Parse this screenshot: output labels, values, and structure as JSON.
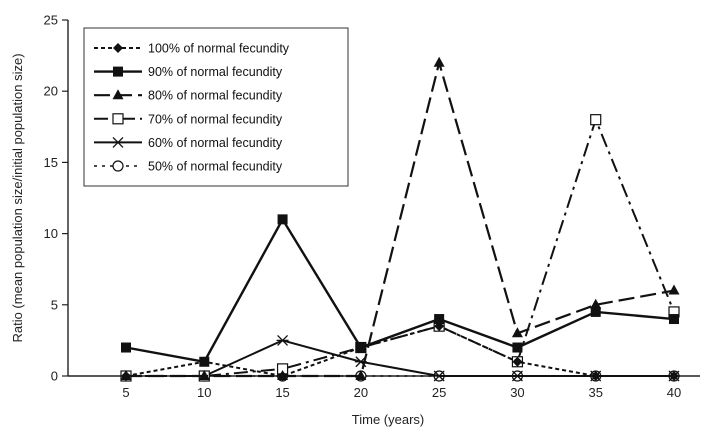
{
  "chart_data": {
    "type": "line",
    "title": "",
    "xlabel": "Time (years)",
    "ylabel": "Ratio (mean population size/initial population size)",
    "x": [
      5,
      10,
      15,
      20,
      25,
      30,
      35,
      40
    ],
    "xlim": [
      5,
      40
    ],
    "ylim": [
      0,
      25
    ],
    "yticks": [
      0,
      5,
      10,
      15,
      20,
      25
    ],
    "xticks": [
      5,
      10,
      15,
      20,
      25,
      30,
      35,
      40
    ],
    "grid": false,
    "legend_position": "top-left",
    "series": [
      {
        "name": "100% of normal fecundity",
        "x": [
          5,
          10,
          15,
          20,
          25,
          30,
          35,
          40
        ],
        "values": [
          0,
          1,
          0,
          2,
          3.5,
          1,
          0,
          0
        ],
        "dash": "4,3",
        "marker": "diamond",
        "width": 2
      },
      {
        "name": "90% of normal fecundity",
        "x": [
          5,
          10,
          15,
          20,
          25,
          30,
          35,
          40
        ],
        "values": [
          2,
          1,
          11,
          2,
          4,
          2,
          4.5,
          4
        ],
        "dash": "",
        "marker": "square",
        "width": 2.4
      },
      {
        "name": "80% of normal fecundity",
        "x": [
          5,
          10,
          15,
          20,
          25,
          30,
          35,
          40
        ],
        "values": [
          0,
          0,
          0,
          0,
          22,
          3,
          5,
          6
        ],
        "dash": "16,6",
        "marker": "triangle",
        "width": 2.2
      },
      {
        "name": "70% of normal fecundity",
        "x": [
          5,
          10,
          15,
          20,
          25,
          30,
          35,
          40
        ],
        "values": [
          0,
          0,
          0.5,
          2,
          3.5,
          1,
          18,
          4.5
        ],
        "dash": "14,5,3,5",
        "marker": "open-square",
        "width": 2
      },
      {
        "name": "60% of normal fecundity",
        "x": [
          10,
          15,
          20,
          25,
          30,
          35,
          40
        ],
        "values": [
          0,
          2.5,
          1,
          0,
          0,
          0,
          0
        ],
        "dash": "",
        "marker": "star",
        "width": 2
      },
      {
        "name": "50% of normal fecundity",
        "x": [
          10,
          15,
          20,
          25,
          30,
          35,
          40
        ],
        "values": [
          0,
          0,
          0,
          0,
          0,
          0,
          0
        ],
        "dash": "3,5",
        "marker": "open-circle",
        "width": 1.6
      }
    ]
  }
}
